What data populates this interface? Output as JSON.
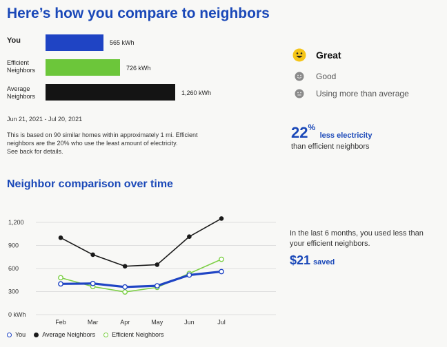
{
  "header": {
    "title": "Here’s how you compare to neighbors"
  },
  "comparison": {
    "rows": [
      {
        "label_lines": [
          "You"
        ],
        "value": 565,
        "value_label": "565 kWh",
        "color": "#1f44c4"
      },
      {
        "label_lines": [
          "Efficient",
          "Neighbors"
        ],
        "value": 726,
        "value_label": "726 kWh",
        "color": "#6cc63a"
      },
      {
        "label_lines": [
          "Average",
          "Neighbors"
        ],
        "value": 1260,
        "value_label": "1,260 kWh",
        "color": "#141414"
      }
    ],
    "date_range": "Jun 21, 2021 - Jul 20, 2021",
    "note_lines": [
      "This is based on 90 similar homes within approximately 1 mi. Efficient",
      "neighbors are the 20% who use the least amount of electricity.",
      "See back for details."
    ]
  },
  "rating": {
    "levels": [
      {
        "label": "Great",
        "icon": "happy-face-icon",
        "color": "#f5c518",
        "active": true
      },
      {
        "label": "Good",
        "icon": "smile-face-icon",
        "color": "#8a8a8a",
        "active": false
      },
      {
        "label": "Using more than average",
        "icon": "neutral-face-icon",
        "color": "#8a8a8a",
        "active": false
      }
    ]
  },
  "summary": {
    "percent": "22",
    "percent_sign": "%",
    "text": "less electricity",
    "sub": "than efficient neighbors"
  },
  "section2": {
    "title": "Neighbor comparison over time"
  },
  "savings": {
    "text_lines": [
      "In the last 6 months, you used less than",
      "your efficient neighbors."
    ],
    "amount": "$21",
    "word": "saved"
  },
  "colors": {
    "accent": "#1a48b8",
    "you": "#1f44c4",
    "efficient": "#7ccf45",
    "average": "#1a1a1a"
  },
  "chart_data": {
    "type": "line",
    "categories": [
      "Feb",
      "Mar",
      "Apr",
      "May",
      "Jun",
      "Jul"
    ],
    "y_tick_labels": [
      "0 kWh",
      "300",
      "600",
      "900",
      "1,200"
    ],
    "y_ticks": [
      0,
      300,
      600,
      900,
      1200
    ],
    "ylim": [
      0,
      1200
    ],
    "grid": true,
    "legend_position": "bottom-left",
    "series": [
      {
        "name": "You",
        "values": [
          400,
          405,
          360,
          375,
          515,
          560
        ],
        "color": "#1f44c4",
        "marker": "hollow"
      },
      {
        "name": "Average Neighbors",
        "values": [
          1000,
          780,
          630,
          650,
          1015,
          1250
        ],
        "color": "#1a1a1a",
        "marker": "filled"
      },
      {
        "name": "Efficient Neighbors",
        "values": [
          480,
          365,
          295,
          355,
          535,
          720
        ],
        "color": "#7ccf45",
        "marker": "hollow"
      }
    ]
  }
}
